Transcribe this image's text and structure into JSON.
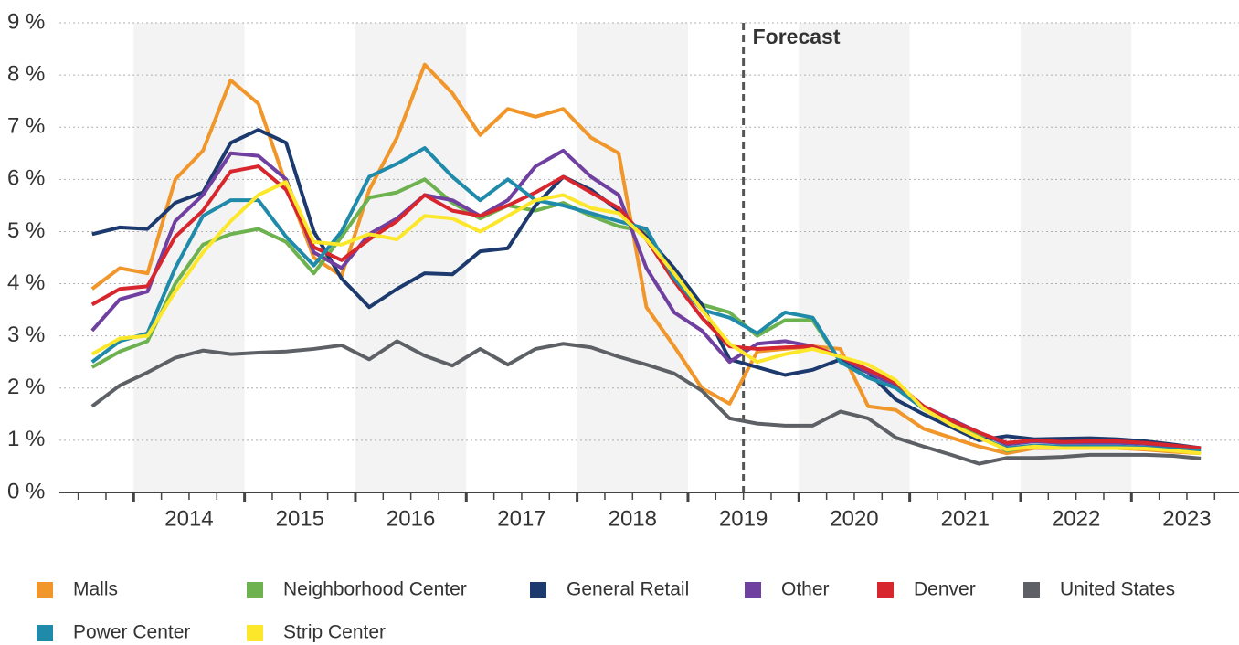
{
  "chart_data": {
    "type": "line",
    "annotation": {
      "text": "Forecast",
      "x": 2019.5
    },
    "x": [
      2013.625,
      2013.875,
      2014.125,
      2014.375,
      2014.625,
      2014.875,
      2015.125,
      2015.375,
      2015.625,
      2015.875,
      2016.125,
      2016.375,
      2016.625,
      2016.875,
      2017.125,
      2017.375,
      2017.625,
      2017.875,
      2018.125,
      2018.375,
      2018.625,
      2018.875,
      2019.125,
      2019.375,
      2019.625,
      2019.875,
      2020.125,
      2020.375,
      2020.625,
      2020.875,
      2021.125,
      2021.375,
      2021.625,
      2021.875,
      2022.125,
      2022.375,
      2022.625,
      2022.875,
      2023.125,
      2023.375,
      2023.625
    ],
    "xlim": [
      2013.33,
      2023.97
    ],
    "xticks": [
      {
        "value": 2014.5,
        "label": "2014"
      },
      {
        "value": 2015.5,
        "label": "2015"
      },
      {
        "value": 2016.5,
        "label": "2016"
      },
      {
        "value": 2017.5,
        "label": "2017"
      },
      {
        "value": 2018.5,
        "label": "2018"
      },
      {
        "value": 2019.5,
        "label": "2019"
      },
      {
        "value": 2020.5,
        "label": "2020"
      },
      {
        "value": 2021.5,
        "label": "2021"
      },
      {
        "value": 2022.5,
        "label": "2022"
      },
      {
        "value": 2023.5,
        "label": "2023"
      }
    ],
    "ylim": [
      0,
      9
    ],
    "yticks": [
      {
        "value": 0,
        "label": "0 %"
      },
      {
        "value": 1,
        "label": "1 %"
      },
      {
        "value": 2,
        "label": "2 %"
      },
      {
        "value": 3,
        "label": "3 %"
      },
      {
        "value": 4,
        "label": "4 %"
      },
      {
        "value": 5,
        "label": "5 %"
      },
      {
        "value": 6,
        "label": "6 %"
      },
      {
        "value": 7,
        "label": "7 %"
      },
      {
        "value": 8,
        "label": "8 %"
      },
      {
        "value": 9,
        "label": "9 %"
      }
    ],
    "grid": true,
    "legend": "bottom",
    "series": [
      {
        "name": "Malls",
        "color": "#f0962a",
        "values": [
          3.9,
          4.3,
          4.2,
          6.0,
          6.55,
          7.9,
          7.45,
          5.9,
          4.5,
          4.15,
          5.8,
          6.8,
          8.2,
          7.65,
          6.85,
          7.35,
          7.2,
          7.35,
          6.8,
          6.5,
          3.55,
          2.8,
          2.0,
          1.7,
          2.7,
          2.75,
          2.8,
          2.75,
          1.65,
          1.58,
          1.22,
          1.05,
          0.88,
          0.75,
          0.85,
          0.85,
          0.85,
          0.85,
          0.82,
          0.78,
          0.75
        ]
      },
      {
        "name": "Neighborhood Center",
        "color": "#6db24f",
        "values": [
          2.4,
          2.7,
          2.9,
          4.0,
          4.75,
          4.95,
          5.05,
          4.8,
          4.2,
          4.9,
          5.65,
          5.75,
          6.0,
          5.55,
          5.25,
          5.5,
          5.4,
          5.55,
          5.3,
          5.1,
          5.0,
          4.1,
          3.6,
          3.45,
          3.0,
          3.3,
          3.3,
          2.5,
          2.3,
          2.05,
          1.65,
          1.35,
          1.1,
          0.8,
          0.9,
          0.85,
          0.85,
          0.85,
          0.85,
          0.83,
          0.8
        ]
      },
      {
        "name": "General Retail",
        "color": "#1d3a6e",
        "values": [
          4.95,
          5.08,
          5.05,
          5.55,
          5.75,
          6.7,
          6.95,
          6.7,
          5.0,
          4.1,
          3.55,
          3.9,
          4.2,
          4.18,
          4.62,
          4.68,
          5.5,
          6.05,
          5.8,
          5.4,
          4.9,
          4.3,
          3.6,
          2.55,
          2.4,
          2.25,
          2.35,
          2.55,
          2.3,
          1.78,
          1.5,
          1.25,
          1.0,
          1.08,
          1.02,
          1.03,
          1.04,
          1.02,
          0.98,
          0.92,
          0.85
        ]
      },
      {
        "name": "Other",
        "color": "#7040a0",
        "values": [
          3.1,
          3.7,
          3.85,
          5.2,
          5.7,
          6.5,
          6.45,
          6.0,
          4.6,
          4.3,
          4.95,
          5.25,
          5.7,
          5.6,
          5.3,
          5.6,
          6.25,
          6.55,
          6.05,
          5.7,
          4.3,
          3.45,
          3.1,
          2.5,
          2.85,
          2.9,
          2.8,
          2.6,
          2.3,
          2.05,
          1.65,
          1.4,
          1.15,
          0.92,
          0.98,
          0.95,
          0.95,
          0.95,
          0.93,
          0.88,
          0.83
        ]
      },
      {
        "name": "Denver",
        "color": "#d7262e",
        "values": [
          3.6,
          3.9,
          3.95,
          4.9,
          5.4,
          6.15,
          6.25,
          5.8,
          4.7,
          4.45,
          4.85,
          5.2,
          5.7,
          5.4,
          5.3,
          5.5,
          5.75,
          6.05,
          5.75,
          5.45,
          4.85,
          4.05,
          3.35,
          2.8,
          2.75,
          2.78,
          2.8,
          2.6,
          2.35,
          2.1,
          1.65,
          1.38,
          1.15,
          0.95,
          1.0,
          0.97,
          0.98,
          0.98,
          0.95,
          0.9,
          0.85
        ]
      },
      {
        "name": "United States",
        "color": "#5d6166",
        "values": [
          1.65,
          2.05,
          2.3,
          2.58,
          2.72,
          2.65,
          2.68,
          2.7,
          2.75,
          2.82,
          2.55,
          2.9,
          2.62,
          2.43,
          2.75,
          2.45,
          2.75,
          2.85,
          2.78,
          2.6,
          2.45,
          2.28,
          1.95,
          1.42,
          1.32,
          1.28,
          1.28,
          1.55,
          1.42,
          1.05,
          0.88,
          0.72,
          0.55,
          0.66,
          0.66,
          0.68,
          0.72,
          0.72,
          0.72,
          0.7,
          0.65
        ]
      },
      {
        "name": "Power Center",
        "color": "#1f8aa9",
        "values": [
          2.5,
          2.9,
          3.05,
          4.3,
          5.3,
          5.6,
          5.6,
          4.9,
          4.35,
          5.0,
          6.05,
          6.3,
          6.6,
          6.05,
          5.6,
          6.0,
          5.6,
          5.5,
          5.35,
          5.2,
          5.05,
          4.1,
          3.5,
          3.35,
          3.05,
          3.45,
          3.35,
          2.5,
          2.2,
          2.0,
          1.6,
          1.3,
          1.05,
          0.85,
          0.9,
          0.88,
          0.88,
          0.88,
          0.86,
          0.83,
          0.8
        ]
      },
      {
        "name": "Strip Center",
        "color": "#fce72a",
        "values": [
          2.65,
          2.95,
          3.0,
          3.85,
          4.6,
          5.2,
          5.7,
          5.95,
          4.8,
          4.75,
          4.95,
          4.85,
          5.3,
          5.25,
          5.0,
          5.3,
          5.6,
          5.7,
          5.45,
          5.35,
          4.85,
          4.2,
          3.5,
          2.85,
          2.5,
          2.65,
          2.75,
          2.6,
          2.45,
          2.15,
          1.6,
          1.3,
          1.05,
          0.82,
          0.88,
          0.85,
          0.85,
          0.85,
          0.84,
          0.8,
          0.75
        ]
      }
    ]
  }
}
